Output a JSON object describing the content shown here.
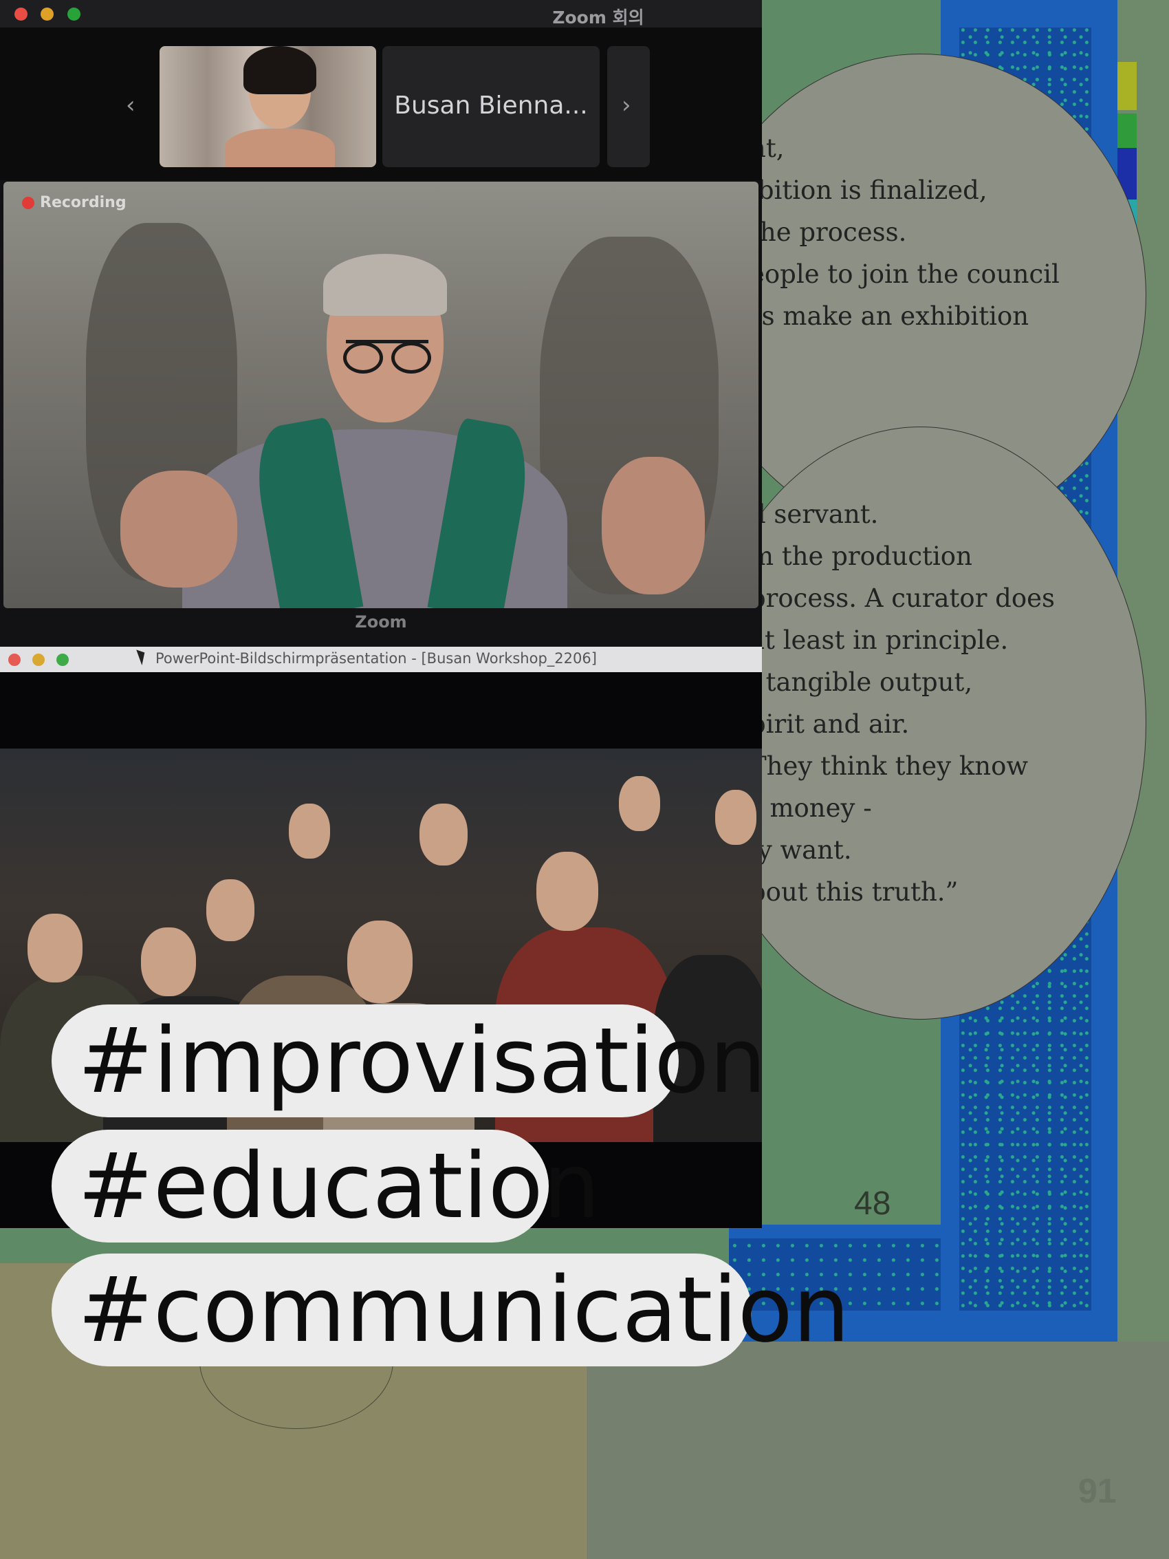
{
  "zoom_window": {
    "title": "Zoom 회의",
    "footer": "Zoom",
    "participant_name": "Busan Bienna...",
    "recording_label": "Recording",
    "prev_label": "‹",
    "next_label": "›"
  },
  "ppt_window": {
    "title": "PowerPoint-Bildschirmpräsentation - [Busan Workshop_2206]"
  },
  "book_text": {
    "block1": [
      "nt,",
      "ibition is finalized,",
      "the process.",
      "eople to join the council",
      "rs make an exhibition",
      "”"
    ],
    "block2": [
      "il servant.",
      "m the production",
      "process. A curator does",
      "at least in principle.",
      "l tangible output,",
      "pirit and air.",
      "They think they know",
      "r money -",
      "ly want.",
      "bout this truth.”"
    ]
  },
  "page_numbers": {
    "left": "48",
    "right": "91"
  },
  "hashtags": [
    "#improvisation",
    "#education",
    "#communication"
  ],
  "colors": {
    "recording": "#e03b36",
    "tag_bg": "#ececec",
    "blue_panel": "#1b5fb8"
  },
  "icons": [
    "chevron-left-icon",
    "chevron-right-icon",
    "recording-dot-icon",
    "mouse-cursor-icon"
  ]
}
